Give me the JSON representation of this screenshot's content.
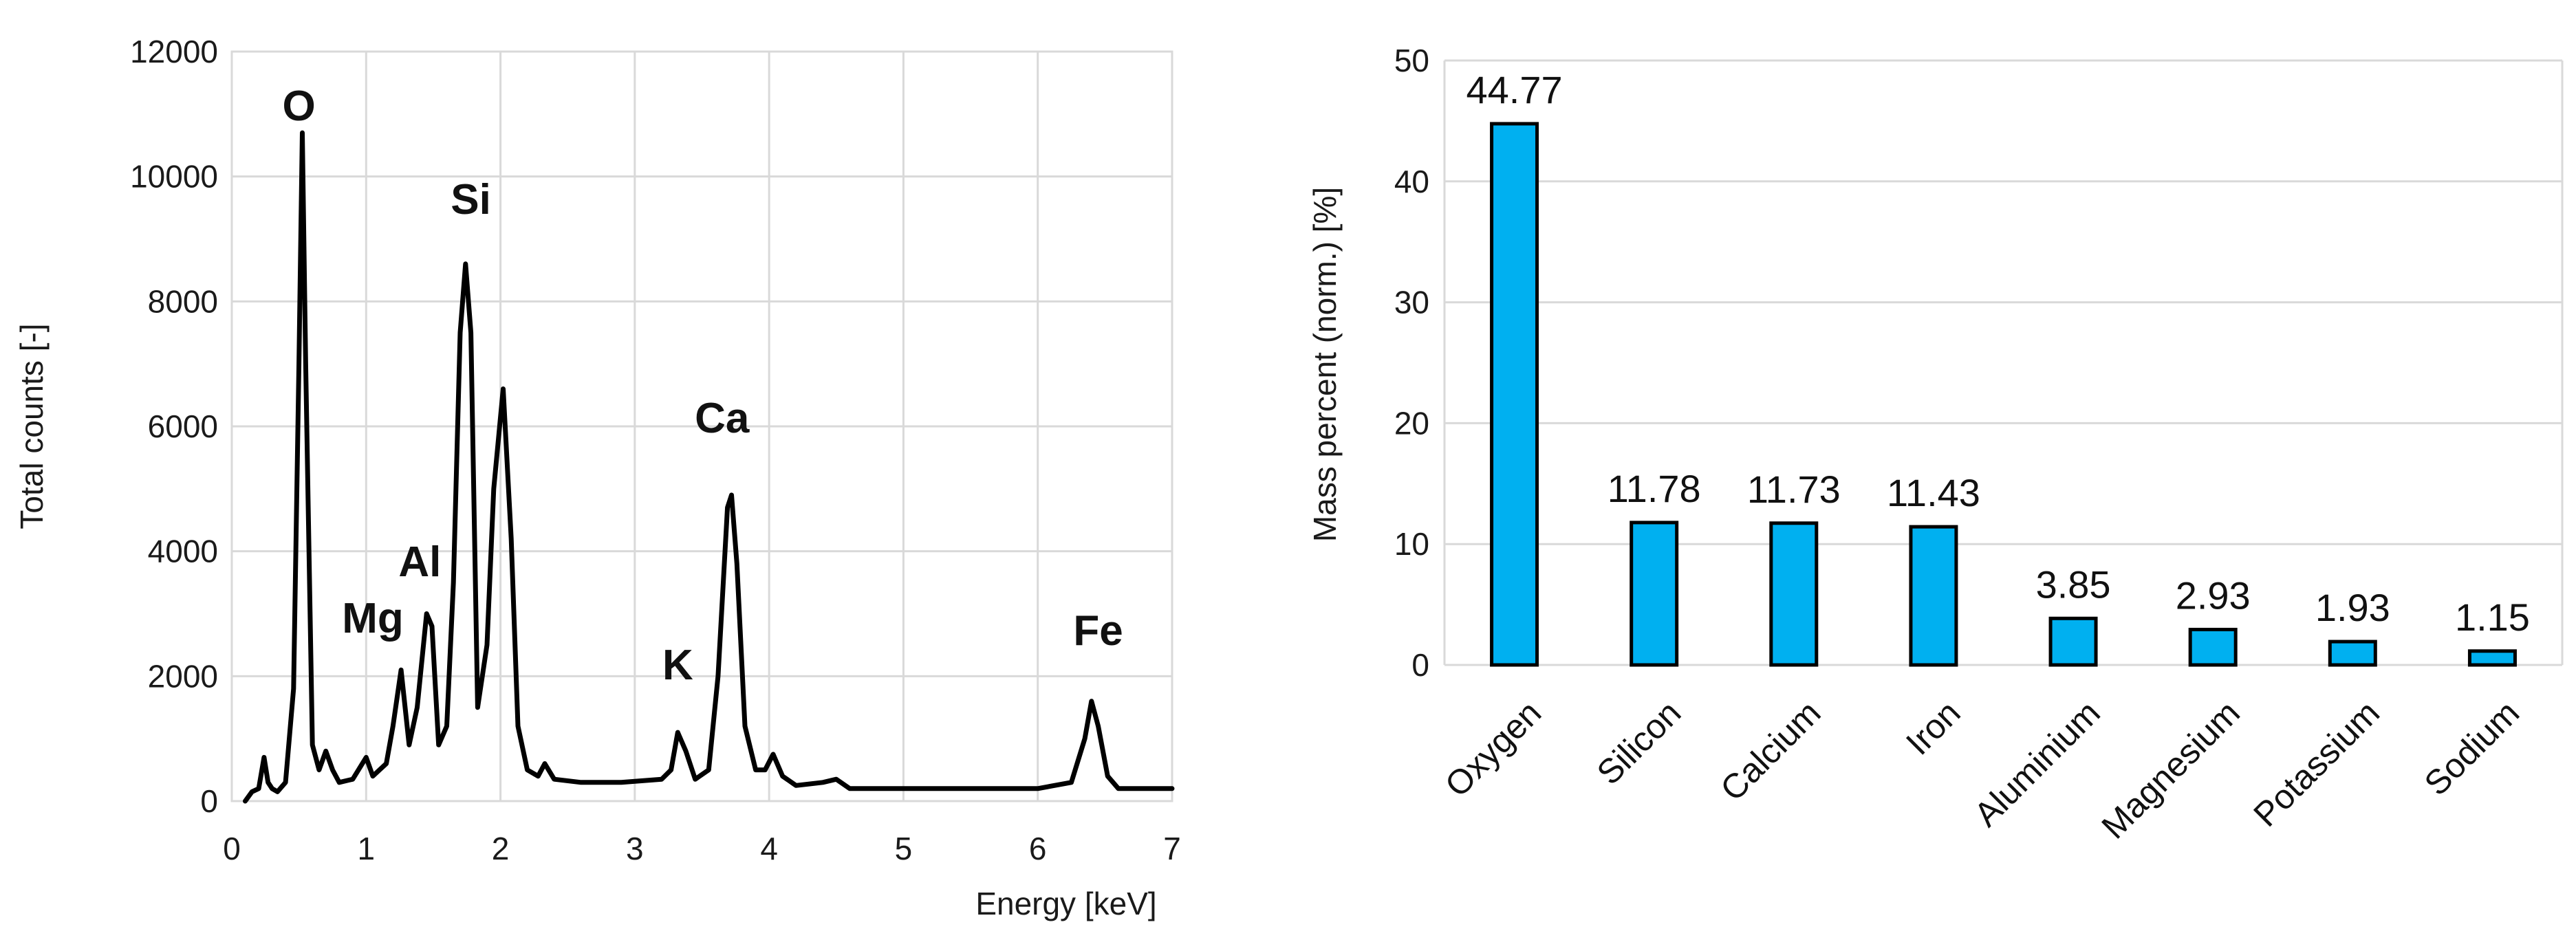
{
  "chart_data": [
    {
      "type": "line",
      "title": "",
      "xlabel": "Energy [keV]",
      "ylabel": "Total  counts [-]",
      "xlim": [
        0,
        7
      ],
      "ylim": [
        0,
        12000
      ],
      "xticks": [
        "0",
        "1",
        "2",
        "3",
        "4",
        "5",
        "6",
        "7"
      ],
      "yticks": [
        "0",
        "2000",
        "4000",
        "6000",
        "8000",
        "10000",
        "12000"
      ],
      "grid": true,
      "line_color": "#000000",
      "x": [
        0.1,
        0.15,
        0.2,
        0.24,
        0.27,
        0.3,
        0.34,
        0.4,
        0.46,
        0.5,
        0.525,
        0.55,
        0.6,
        0.65,
        0.7,
        0.75,
        0.8,
        0.9,
        1.0,
        1.05,
        1.1,
        1.15,
        1.2,
        1.26,
        1.32,
        1.38,
        1.45,
        1.49,
        1.54,
        1.6,
        1.65,
        1.7,
        1.74,
        1.78,
        1.83,
        1.9,
        1.95,
        2.02,
        2.08,
        2.13,
        2.2,
        2.28,
        2.33,
        2.4,
        2.6,
        2.9,
        3.2,
        3.27,
        3.32,
        3.38,
        3.45,
        3.55,
        3.62,
        3.69,
        3.72,
        3.76,
        3.82,
        3.9,
        3.97,
        4.03,
        4.1,
        4.2,
        4.4,
        4.5,
        4.6,
        4.8,
        5.2,
        5.6,
        6.0,
        6.25,
        6.35,
        6.4,
        6.45,
        6.52,
        6.6,
        6.8,
        7.0
      ],
      "values": [
        0,
        150,
        200,
        700,
        300,
        200,
        150,
        300,
        1800,
        7000,
        10700,
        7000,
        900,
        500,
        800,
        500,
        300,
        350,
        700,
        400,
        500,
        600,
        1200,
        2100,
        900,
        1500,
        3000,
        2800,
        900,
        1200,
        3500,
        7500,
        8600,
        7500,
        1500,
        2500,
        5000,
        6600,
        4200,
        1200,
        500,
        400,
        600,
        350,
        300,
        300,
        350,
        500,
        1100,
        800,
        350,
        500,
        2000,
        4700,
        4900,
        3800,
        1200,
        500,
        500,
        750,
        400,
        250,
        300,
        350,
        200,
        200,
        200,
        200,
        200,
        300,
        1000,
        1600,
        1200,
        400,
        200,
        200,
        200
      ],
      "peak_labels": [
        {
          "text": "O",
          "x": 0.5,
          "y": 10900
        },
        {
          "text": "Si",
          "x": 1.78,
          "y": 9400
        },
        {
          "text": "Al",
          "x": 1.4,
          "y": 3600
        },
        {
          "text": "Mg",
          "x": 1.05,
          "y": 2700
        },
        {
          "text": "Ca",
          "x": 3.65,
          "y": 5900
        },
        {
          "text": "K",
          "x": 3.32,
          "y": 1950
        },
        {
          "text": "Fe",
          "x": 6.45,
          "y": 2500
        }
      ]
    },
    {
      "type": "bar",
      "title": "",
      "xlabel": "",
      "ylabel": "Mass percent (norm.) [%]",
      "ylim": [
        0,
        50
      ],
      "yticks": [
        "0",
        "10",
        "20",
        "30",
        "40",
        "50"
      ],
      "grid": true,
      "bar_color": "#00b0f0",
      "categories": [
        "Oxygen",
        "Silicon",
        "Calcium",
        "Iron",
        "Aluminium",
        "Magnesium",
        "Potassium",
        "Sodium"
      ],
      "values": [
        44.77,
        11.78,
        11.73,
        11.43,
        3.85,
        2.93,
        1.93,
        1.15
      ],
      "value_labels": [
        "44.77",
        "11.78",
        "11.73",
        "11.43",
        "3.85",
        "2.93",
        "1.93",
        "1.15"
      ]
    }
  ]
}
